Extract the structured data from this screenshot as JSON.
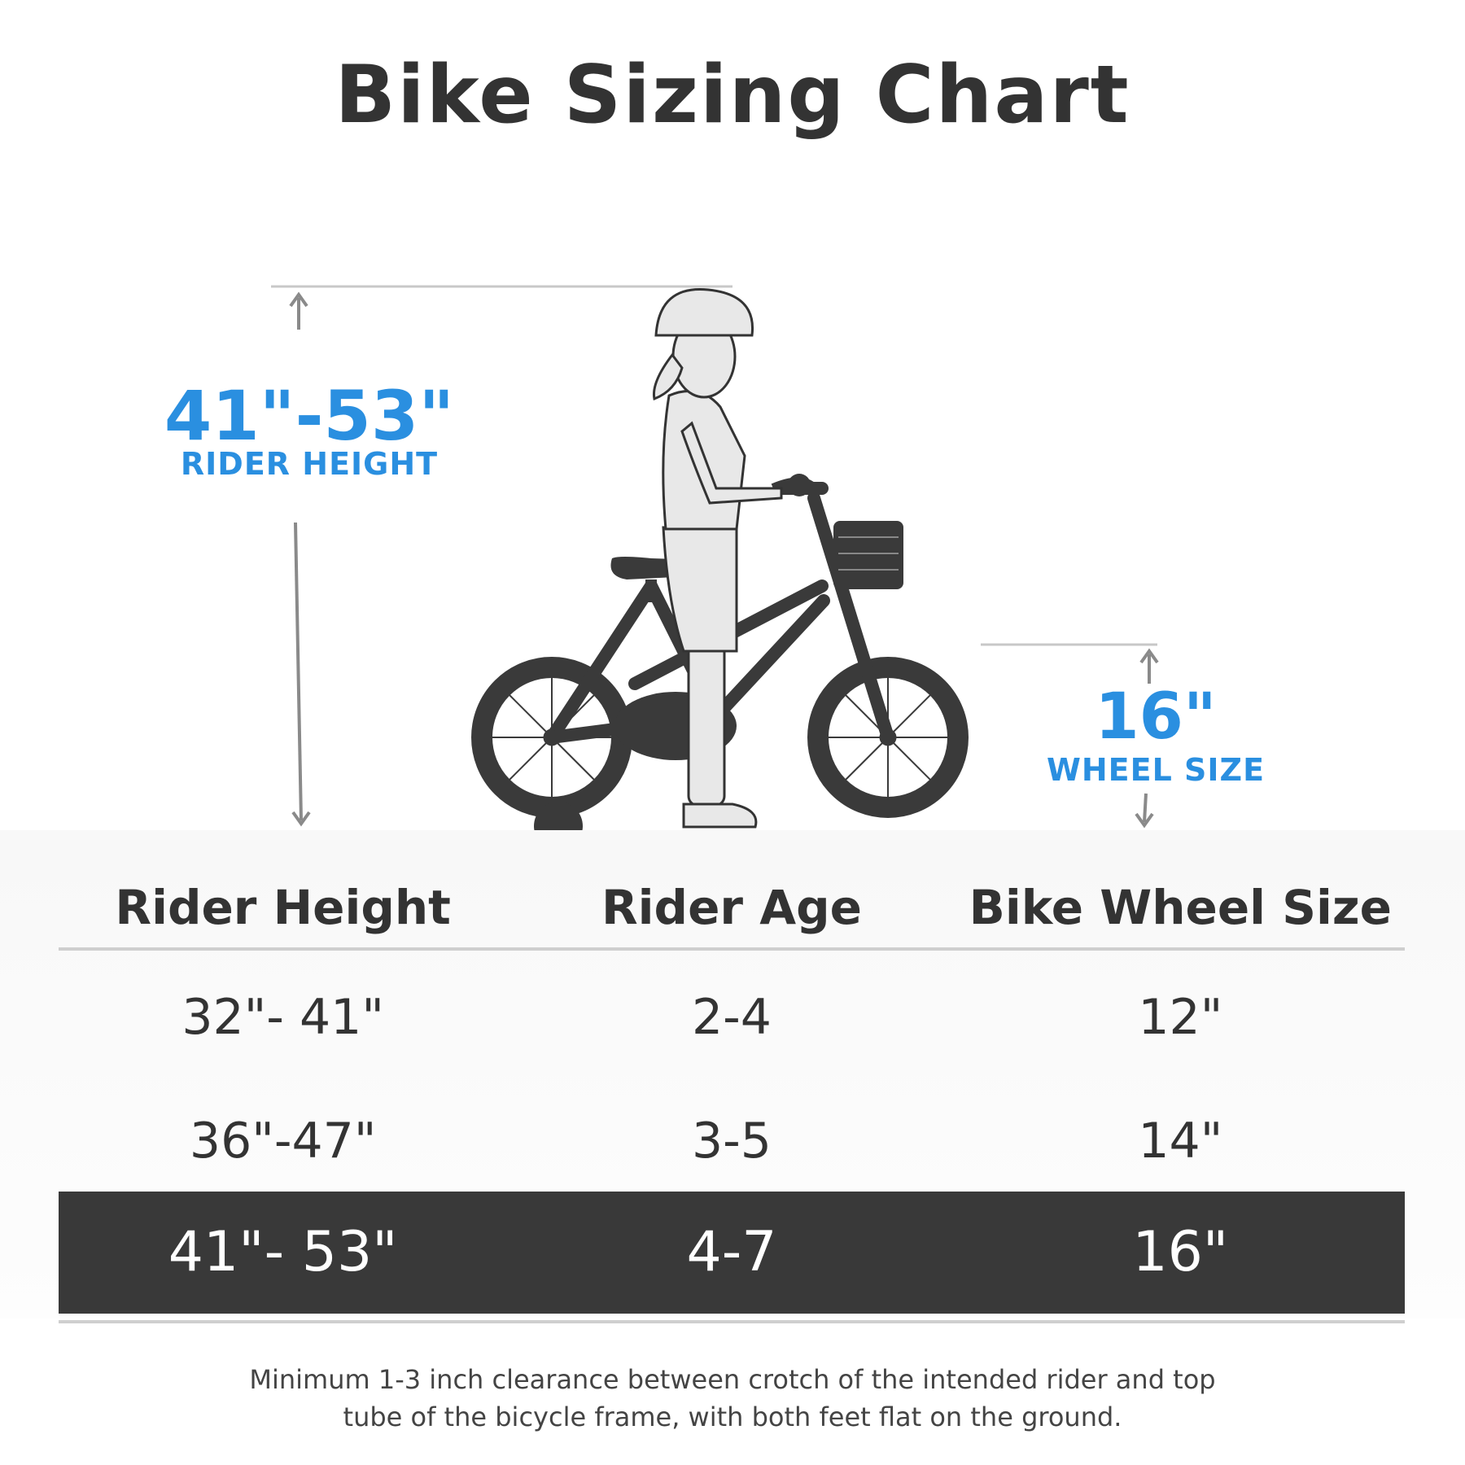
{
  "title": "Bike Sizing Chart",
  "colors": {
    "accent": "#2a8fe0",
    "text": "#333333",
    "bike": "#3a3a3a",
    "rider": "#e8e8e8",
    "highlight_row": "#393939",
    "guide_line": "#c8c8c8"
  },
  "rider_measure": {
    "value": "41\"-53\"",
    "label": "RIDER HEIGHT"
  },
  "wheel_measure": {
    "value": "16\"",
    "label": "WHEEL SIZE"
  },
  "table": {
    "headers": [
      "Rider Height",
      "Rider Age",
      "Bike Wheel Size"
    ],
    "rows": [
      {
        "height": "32\"- 41\"",
        "age": "2-4",
        "wheel": "12\""
      },
      {
        "height": "36\"-47\"",
        "age": "3-5",
        "wheel": "14\""
      },
      {
        "height": "41\"- 53\"",
        "age": "4-7",
        "wheel": "16\"",
        "highlighted": true
      }
    ]
  },
  "footnote": {
    "line1": "Minimum 1-3 inch clearance between crotch of the intended rider and top",
    "line2": "tube of the bicycle frame, with both feet flat on the ground."
  },
  "icons": [
    "arrow-up-icon",
    "arrow-down-icon",
    "child-rider-illustration",
    "kids-bike-illustration"
  ]
}
